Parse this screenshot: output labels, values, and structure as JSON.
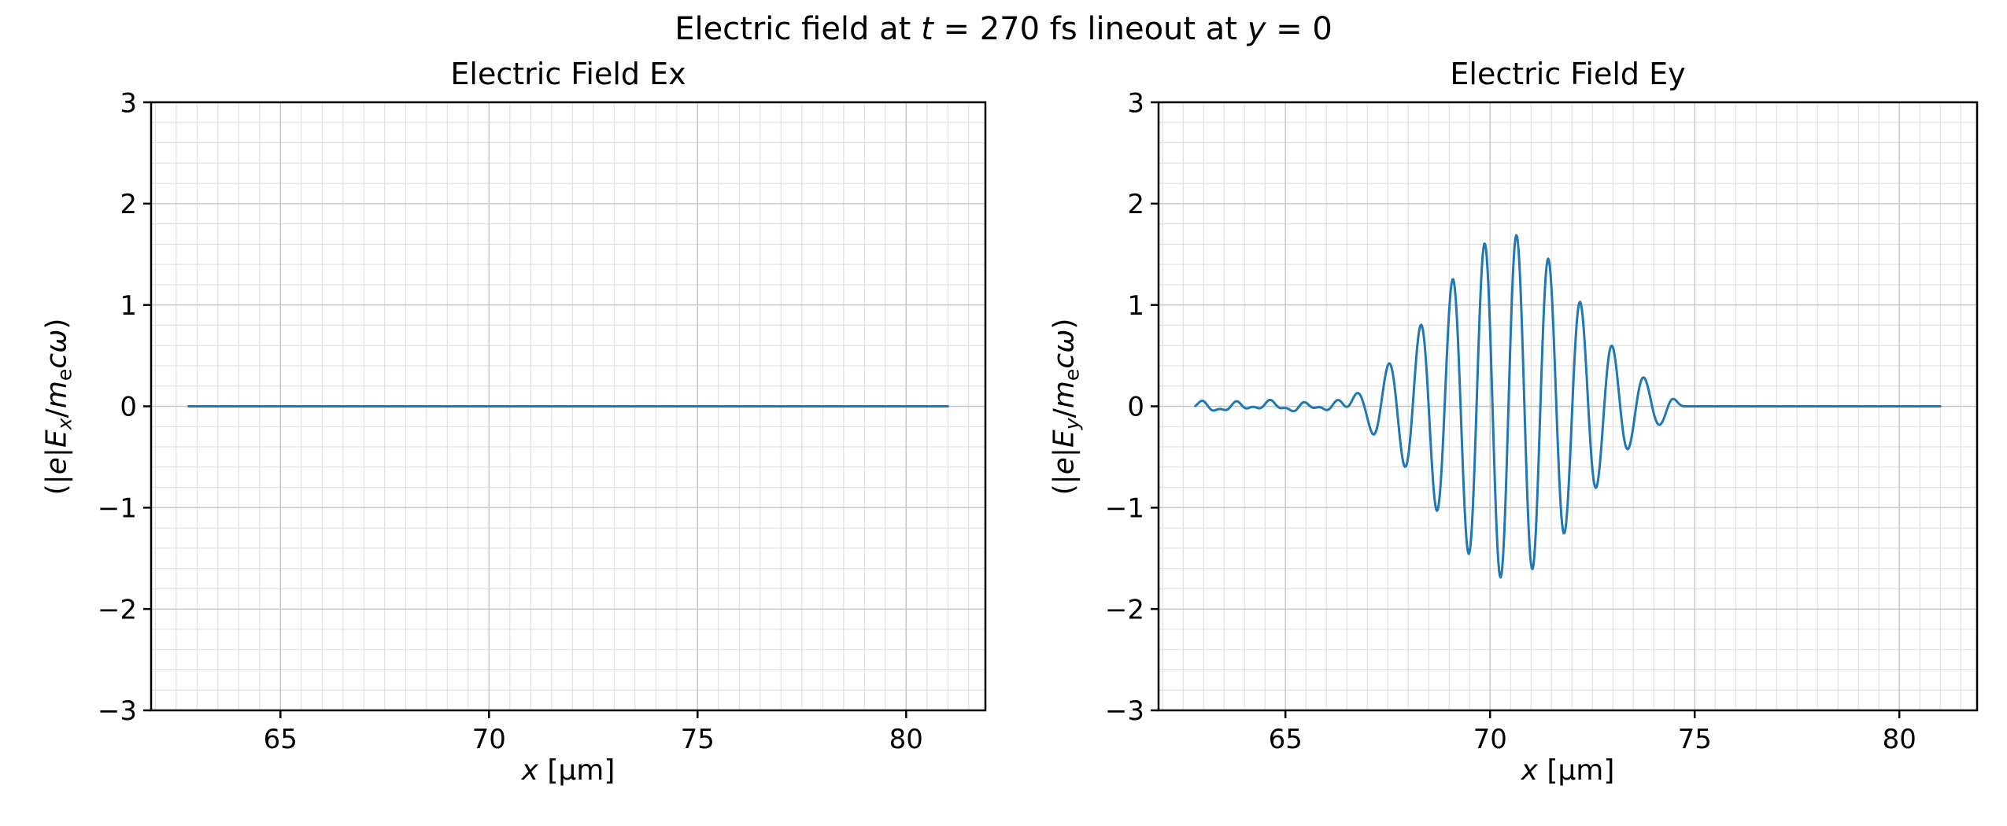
{
  "figure": {
    "suptitle_parts": [
      {
        "t": "Electric field at "
      },
      {
        "t": "t",
        "i": true
      },
      {
        "t": " = 270 fs lineout at "
      },
      {
        "t": "y",
        "i": true
      },
      {
        "t": " = 0"
      }
    ],
    "background": "#ffffff",
    "text_color": "#000000"
  },
  "chart_data": [
    {
      "type": "line",
      "title": "Electric Field Ex",
      "xlabel_parts": [
        {
          "t": "x",
          "i": true
        },
        {
          "t": " [μm]"
        }
      ],
      "ylabel_parts": [
        {
          "t": "(|"
        },
        {
          "t": "e",
          "i": true
        },
        {
          "t": "|"
        },
        {
          "t": "E",
          "i": true
        },
        {
          "t": "x",
          "i": true,
          "sub": true
        },
        {
          "t": "/"
        },
        {
          "t": "m",
          "i": true
        },
        {
          "t": "e",
          "sub": true
        },
        {
          "t": "c",
          "i": true
        },
        {
          "t": "ω",
          "i": true
        },
        {
          "t": ")"
        }
      ],
      "xlim": [
        61.9,
        81.9
      ],
      "ylim": [
        -3,
        3
      ],
      "xticks": [
        65,
        70,
        75,
        80
      ],
      "yticks": [
        -3,
        -2,
        -1,
        0,
        1,
        2,
        3
      ],
      "xtick_labels": [
        "65",
        "70",
        "75",
        "80"
      ],
      "ytick_labels": [
        "−3",
        "−2",
        "−1",
        "0",
        "1",
        "2",
        "3"
      ],
      "x_minor_step": 0.5,
      "y_minor_step": 0.2,
      "grid": true,
      "line_color": "#1f77b4",
      "grid_minor_color": "#dcdcdc",
      "grid_major_color": "#c6c6c6",
      "series": [
        {
          "name": "Ex",
          "x_start": 62.8,
          "x_end": 81.0,
          "sample_step": 0.02,
          "signal": {
            "kind": "flat",
            "level": 0
          }
        }
      ]
    },
    {
      "type": "line",
      "title": "Electric Field Ey",
      "xlabel_parts": [
        {
          "t": "x",
          "i": true
        },
        {
          "t": " [μm]"
        }
      ],
      "ylabel_parts": [
        {
          "t": "(|"
        },
        {
          "t": "e",
          "i": true
        },
        {
          "t": "|"
        },
        {
          "t": "E",
          "i": true
        },
        {
          "t": "y",
          "i": true,
          "sub": true
        },
        {
          "t": "/"
        },
        {
          "t": "m",
          "i": true
        },
        {
          "t": "e",
          "sub": true
        },
        {
          "t": "c",
          "i": true
        },
        {
          "t": "ω",
          "i": true
        },
        {
          "t": ")"
        }
      ],
      "xlim": [
        61.9,
        81.9
      ],
      "ylim": [
        -3,
        3
      ],
      "xticks": [
        65,
        70,
        75,
        80
      ],
      "yticks": [
        -3,
        -2,
        -1,
        0,
        1,
        2,
        3
      ],
      "xtick_labels": [
        "65",
        "70",
        "75",
        "80"
      ],
      "ytick_labels": [
        "−3",
        "−2",
        "−1",
        "0",
        "1",
        "2",
        "3"
      ],
      "x_minor_step": 0.5,
      "y_minor_step": 0.2,
      "grid": true,
      "line_color": "#1f77b4",
      "grid_minor_color": "#dcdcdc",
      "grid_major_color": "#c6c6c6",
      "series": [
        {
          "name": "Ey",
          "x_start": 62.8,
          "x_end": 81.0,
          "sample_step": 0.02,
          "signal": {
            "kind": "modulated_pulse",
            "noise_components": [
              {
                "amplitude": 0.035,
                "wavelength": 0.85,
                "phase": 1.2
              },
              {
                "amplitude": 0.02,
                "wavelength": 0.41,
                "phase": 4.0
              },
              {
                "amplitude": 0.012,
                "wavelength": 1.9,
                "phase": 2.2
              }
            ],
            "noise_fade_start": 66.6,
            "noise_fade_end": 67.4,
            "pulse": {
              "center": 70.45,
              "sigma": 1.75,
              "amplitude": 1.7,
              "wavelength": 0.78,
              "phase": 0.0,
              "window_start": 66.3,
              "window_rise": 0.6,
              "window_end": 74.8,
              "window_fall": 0.5
            }
          },
          "envelope_peaks_approx": [
            [
              67.3,
              0.35
            ],
            [
              68.1,
              0.85
            ],
            [
              68.9,
              1.3
            ],
            [
              69.7,
              1.55
            ],
            [
              70.4,
              1.68
            ],
            [
              71.2,
              1.5
            ],
            [
              72.0,
              1.2
            ],
            [
              72.8,
              0.8
            ],
            [
              73.6,
              0.4
            ],
            [
              74.3,
              0.15
            ]
          ]
        }
      ]
    }
  ]
}
